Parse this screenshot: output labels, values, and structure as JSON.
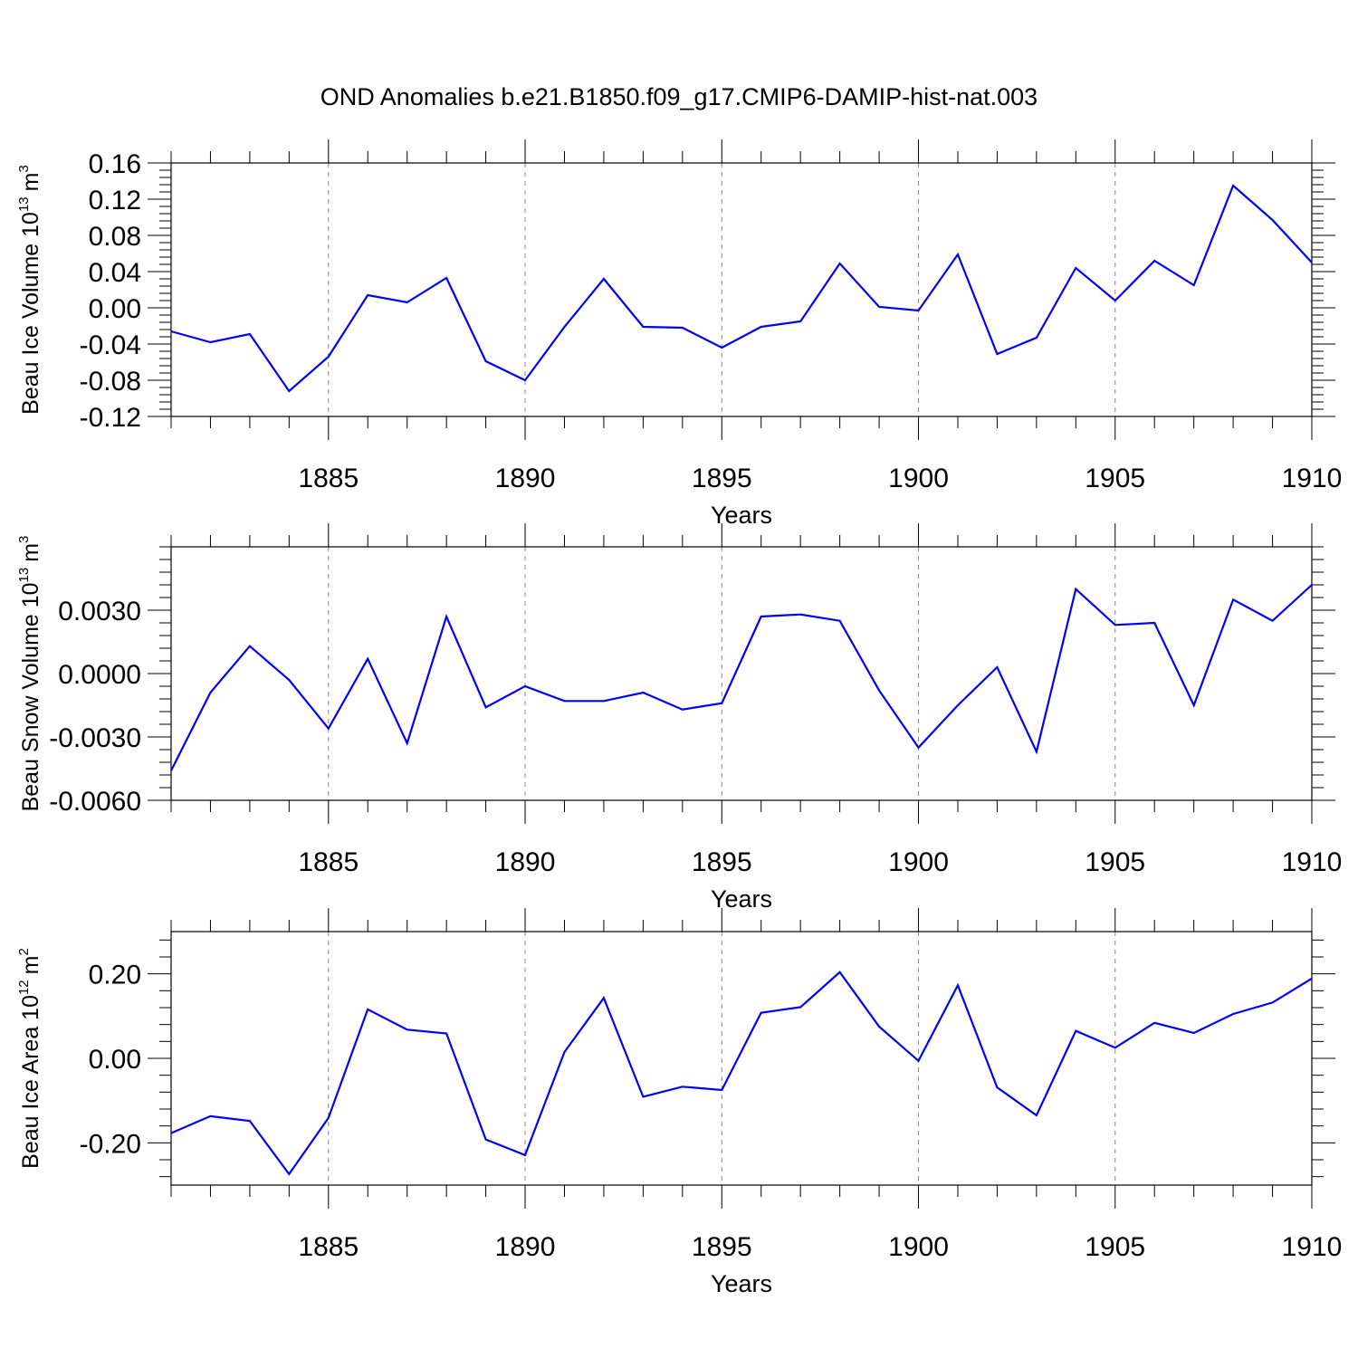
{
  "title": "OND Anomalies b.e21.B1850.f09_g17.CMIP6-DAMIP-hist-nat.003",
  "colors": {
    "line": "#0000ff",
    "axis": "#000000",
    "grid": "#888888"
  },
  "chart_data": [
    {
      "type": "line",
      "ylabel": {
        "text": "Beau Ice Volume 10",
        "sup": "13",
        "unit": "m",
        "unit_sup": "3"
      },
      "xlabel": "Years",
      "xlim": [
        1881,
        1910
      ],
      "ylim": [
        -0.12,
        0.16
      ],
      "yticks": [
        -0.12,
        -0.08,
        -0.04,
        0.0,
        0.04,
        0.08,
        0.12,
        0.16
      ],
      "ytick_labels": [
        "-0.12",
        "-0.08",
        "-0.04",
        "0.00",
        "0.04",
        "0.08",
        "0.12",
        "0.16"
      ],
      "xticks": [
        1885,
        1890,
        1895,
        1900,
        1905,
        1910
      ],
      "xtick_labels": [
        "1885",
        "1890",
        "1895",
        "1900",
        "1905",
        "1910"
      ],
      "grid": "vertical dashed at major x ticks",
      "series": [
        {
          "x": [
            1881,
            1882,
            1883,
            1884,
            1885,
            1886,
            1887,
            1888,
            1889,
            1890,
            1891,
            1892,
            1893,
            1894,
            1895,
            1896,
            1897,
            1898,
            1899,
            1900,
            1901,
            1902,
            1903,
            1904,
            1905,
            1906,
            1907,
            1908,
            1909,
            1910
          ],
          "values": [
            -0.026,
            -0.038,
            -0.029,
            -0.092,
            -0.054,
            0.014,
            0.006,
            0.033,
            -0.059,
            -0.08,
            -0.021,
            0.032,
            -0.021,
            -0.022,
            -0.044,
            -0.021,
            -0.015,
            0.049,
            0.001,
            -0.003,
            0.059,
            -0.051,
            -0.033,
            0.044,
            0.008,
            0.052,
            0.025,
            0.135,
            0.097,
            0.05
          ]
        }
      ]
    },
    {
      "type": "line",
      "ylabel": {
        "text": "Beau Snow Volume 10",
        "sup": "13",
        "unit": "m",
        "unit_sup": "3"
      },
      "xlabel": "Years",
      "xlim": [
        1881,
        1910
      ],
      "ylim": [
        -0.006,
        0.006
      ],
      "yticks": [
        -0.006,
        -0.003,
        0.0,
        0.003
      ],
      "ytick_labels": [
        "-0.0060",
        "-0.0030",
        "0.0000",
        "0.0030"
      ],
      "xticks": [
        1885,
        1890,
        1895,
        1900,
        1905,
        1910
      ],
      "xtick_labels": [
        "1885",
        "1890",
        "1895",
        "1900",
        "1905",
        "1910"
      ],
      "grid": "vertical dashed at major x ticks",
      "series": [
        {
          "x": [
            1881,
            1882,
            1883,
            1884,
            1885,
            1886,
            1887,
            1888,
            1889,
            1890,
            1891,
            1892,
            1893,
            1894,
            1895,
            1896,
            1897,
            1898,
            1899,
            1900,
            1901,
            1902,
            1903,
            1904,
            1905,
            1906,
            1907,
            1908,
            1909,
            1910
          ],
          "values": [
            -0.0046,
            -0.0009,
            0.0013,
            -0.0003,
            -0.0026,
            0.0007,
            -0.0033,
            0.0027,
            -0.0016,
            -0.0006,
            -0.0013,
            -0.0013,
            -0.0009,
            -0.0017,
            -0.0014,
            0.0027,
            0.0028,
            0.0025,
            -0.0008,
            -0.0035,
            -0.0015,
            0.0003,
            -0.0037,
            0.004,
            0.0023,
            0.0024,
            -0.0015,
            0.0035,
            0.0025,
            0.0042
          ]
        }
      ]
    },
    {
      "type": "line",
      "ylabel": {
        "text": "Beau Ice Area 10",
        "sup": "12",
        "unit": "m",
        "unit_sup": "2"
      },
      "xlabel": "Years",
      "xlim": [
        1881,
        1910
      ],
      "ylim": [
        -0.3,
        0.3
      ],
      "yticks": [
        -0.2,
        0.0,
        0.2
      ],
      "ytick_labels": [
        "-0.20",
        "0.00",
        "0.20"
      ],
      "xticks": [
        1885,
        1890,
        1895,
        1900,
        1905,
        1910
      ],
      "xtick_labels": [
        "1885",
        "1890",
        "1895",
        "1900",
        "1905",
        "1910"
      ],
      "grid": "vertical dashed at major x ticks",
      "series": [
        {
          "x": [
            1881,
            1882,
            1883,
            1884,
            1885,
            1886,
            1887,
            1888,
            1889,
            1890,
            1891,
            1892,
            1893,
            1894,
            1895,
            1896,
            1897,
            1898,
            1899,
            1900,
            1901,
            1902,
            1903,
            1904,
            1905,
            1906,
            1907,
            1908,
            1909,
            1910
          ],
          "values": [
            -0.177,
            -0.137,
            -0.148,
            -0.274,
            -0.141,
            0.116,
            0.068,
            0.059,
            -0.192,
            -0.229,
            0.015,
            0.143,
            -0.091,
            -0.067,
            -0.075,
            0.108,
            0.121,
            0.204,
            0.075,
            -0.006,
            0.173,
            -0.069,
            -0.135,
            0.065,
            0.025,
            0.084,
            0.06,
            0.105,
            0.132,
            0.189
          ]
        }
      ]
    }
  ]
}
